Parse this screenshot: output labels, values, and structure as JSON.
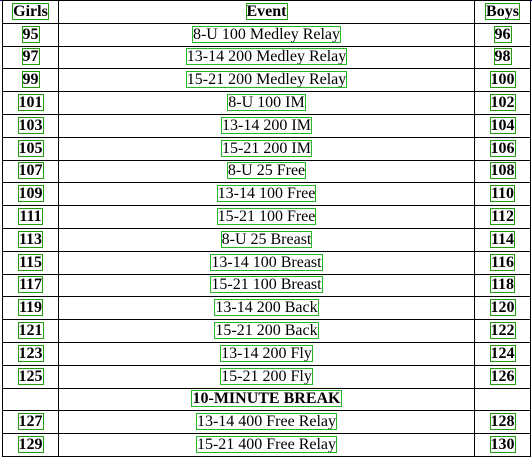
{
  "header": {
    "girls": "Girls",
    "event": "Event",
    "boys": "Boys"
  },
  "rows": [
    {
      "girls": "95",
      "event": "8-U 100 Medley Relay",
      "boys": "96"
    },
    {
      "girls": "97",
      "event": "13-14 200 Medley Relay",
      "boys": "98"
    },
    {
      "girls": "99",
      "event": "15-21 200 Medley Relay",
      "boys": "100"
    },
    {
      "girls": "101",
      "event": "8-U 100 IM",
      "boys": "102"
    },
    {
      "girls": "103",
      "event": "13-14 200 IM",
      "boys": "104"
    },
    {
      "girls": "105",
      "event": "15-21 200 IM",
      "boys": "106"
    },
    {
      "girls": "107",
      "event": "8-U 25 Free",
      "boys": "108"
    },
    {
      "girls": "109",
      "event": "13-14 100 Free",
      "boys": "110"
    },
    {
      "girls": "111",
      "event": "15-21 100 Free",
      "boys": "112"
    },
    {
      "girls": "113",
      "event": "8-U 25 Breast",
      "boys": "114"
    },
    {
      "girls": "115",
      "event": "13-14 100 Breast",
      "boys": "116"
    },
    {
      "girls": "117",
      "event": "15-21 100 Breast",
      "boys": "118"
    },
    {
      "girls": "119",
      "event": "13-14 200 Back",
      "boys": "120"
    },
    {
      "girls": "121",
      "event": "15-21 200 Back",
      "boys": "122"
    },
    {
      "girls": "123",
      "event": "13-14 200 Fly",
      "boys": "124"
    },
    {
      "girls": "125",
      "event": "15-21 200 Fly",
      "boys": "126"
    },
    {
      "girls": "",
      "event": "10-MINUTE BREAK",
      "boys": ""
    },
    {
      "girls": "127",
      "event": "13-14 400 Free Relay",
      "boys": "128"
    },
    {
      "girls": "129",
      "event": "15-21 400 Free Relay",
      "boys": "130"
    }
  ]
}
